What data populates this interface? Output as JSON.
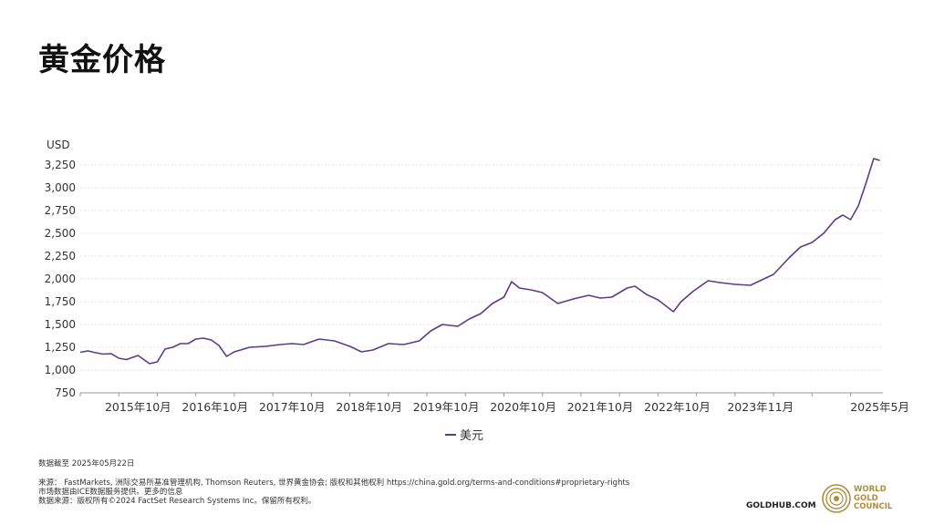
{
  "title": "黄金价格",
  "chart_data": {
    "type": "line",
    "ylabel": "USD",
    "ylim": [
      750,
      3300
    ],
    "yticks": [
      750,
      1000,
      1250,
      1500,
      1750,
      2000,
      2250,
      2500,
      2750,
      3000,
      3250
    ],
    "ytick_labels": [
      "750",
      "1,000",
      "1,250",
      "1,500",
      "1,750",
      "2,000",
      "2,250",
      "2,500",
      "2,750",
      "3,000",
      "3,250"
    ],
    "x_tick_labels": [
      "2015年10月",
      "2016年10月",
      "2017年10月",
      "2018年10月",
      "2019年10月",
      "2020年10月",
      "2021年10月",
      "2022年10月",
      "2023年11月",
      "2025年5月"
    ],
    "x_tick_dates": [
      2015.75,
      2016.75,
      2017.75,
      2018.75,
      2019.75,
      2020.75,
      2021.75,
      2022.75,
      2023.83,
      2025.38
    ],
    "xlim": [
      2015.0,
      2025.42
    ],
    "grid": true,
    "legend_position": "bottom",
    "series": [
      {
        "name": "美元",
        "color": "#5b3d86",
        "x": [
          2015.0,
          2015.1,
          2015.2,
          2015.3,
          2015.4,
          2015.5,
          2015.6,
          2015.75,
          2015.9,
          2016.0,
          2016.1,
          2016.2,
          2016.3,
          2016.4,
          2016.5,
          2016.6,
          2016.7,
          2016.8,
          2016.9,
          2017.0,
          2017.2,
          2017.4,
          2017.6,
          2017.75,
          2017.9,
          2018.1,
          2018.3,
          2018.5,
          2018.65,
          2018.8,
          2019.0,
          2019.2,
          2019.4,
          2019.55,
          2019.7,
          2019.9,
          2020.05,
          2020.2,
          2020.35,
          2020.5,
          2020.6,
          2020.7,
          2020.85,
          2021.0,
          2021.2,
          2021.4,
          2021.6,
          2021.75,
          2021.9,
          2022.1,
          2022.2,
          2022.35,
          2022.5,
          2022.7,
          2022.8,
          2022.95,
          2023.15,
          2023.3,
          2023.5,
          2023.7,
          2023.85,
          2024.0,
          2024.2,
          2024.35,
          2024.5,
          2024.65,
          2024.8,
          2024.9,
          2025.0,
          2025.1,
          2025.2,
          2025.3,
          2025.38
        ],
        "values": [
          1195,
          1210,
          1190,
          1175,
          1180,
          1130,
          1115,
          1160,
          1070,
          1090,
          1230,
          1250,
          1290,
          1290,
          1340,
          1350,
          1330,
          1270,
          1150,
          1200,
          1250,
          1260,
          1280,
          1290,
          1280,
          1340,
          1320,
          1260,
          1200,
          1220,
          1290,
          1280,
          1320,
          1430,
          1500,
          1480,
          1560,
          1620,
          1730,
          1800,
          1970,
          1900,
          1880,
          1850,
          1730,
          1780,
          1820,
          1790,
          1800,
          1900,
          1920,
          1830,
          1770,
          1640,
          1750,
          1860,
          1980,
          1960,
          1940,
          1930,
          1990,
          2050,
          2230,
          2350,
          2400,
          2500,
          2650,
          2700,
          2650,
          2800,
          3050,
          3320,
          3300
        ]
      }
    ]
  },
  "footer": {
    "asof": "数据截至 2025年05月22日",
    "source_line1": "来源： FastMarkets, 洲际交易所基准管理机构, Thomson Reuters, 世界黄金协会; 版权和其他权利 https://china.gold.org/terms-and-conditions#proprietary-rights",
    "source_line2": "市场数据由ICE数据服务提供。更多的信息",
    "source_line3": "数据来源：版权所有©2024 FactSet Research Systems Inc。保留所有权利。"
  },
  "brand": {
    "goldhub": "GOLDHUB.COM",
    "wgc_line1": "WORLD",
    "wgc_line2": "GOLD",
    "wgc_line3": "COUNCIL",
    "wgc_color": "#b08d3c"
  }
}
